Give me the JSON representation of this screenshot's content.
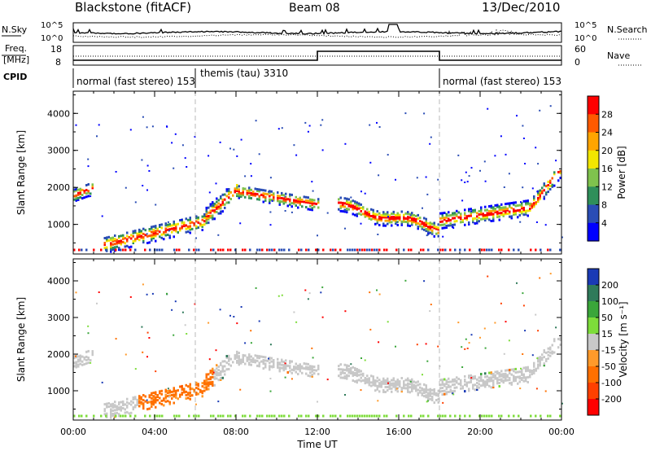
{
  "header": {
    "station": "Blackstone (fitACF)",
    "beam": "Beam 08",
    "date": "13/Dec/2010"
  },
  "panels": {
    "nsky": {
      "label": "N.Sky",
      "right_label": "N.Search",
      "left_ticks": [
        "10^5",
        "10^0"
      ],
      "right_ticks": [
        "10^5",
        "10^0"
      ]
    },
    "freq": {
      "label_top": "Freq.",
      "label_bottom": "[MHz]",
      "right_label": "Nave",
      "left_ticks": [
        "18",
        "8"
      ],
      "right_ticks": [
        "60",
        "0"
      ]
    },
    "cpid": {
      "label": "CPID",
      "segments": [
        {
          "text": "normal (fast stereo) 153",
          "start_h": 0,
          "end_h": 6
        },
        {
          "text": "themis (tau) 3310",
          "start_h": 6,
          "end_h": 18
        },
        {
          "text": "normal (fast stereo) 153",
          "start_h": 18,
          "end_h": 24
        }
      ]
    }
  },
  "colorbars": {
    "power": {
      "label": "Power [dB]",
      "ticks": [
        "28",
        "24",
        "20",
        "16",
        "12",
        "8",
        "4"
      ],
      "colors": [
        "#ff0000",
        "#ff5a00",
        "#ffa500",
        "#f2e600",
        "#7fc24d",
        "#2f8f5a",
        "#2a4db5",
        "#0000ff"
      ]
    },
    "velocity": {
      "label": "Velocity [m s⁻¹]",
      "ticks": [
        "200",
        "100",
        "50",
        "15",
        "-15",
        "-50",
        "-100",
        "-200"
      ],
      "colors": [
        "#1a3ab5",
        "#2f7a5a",
        "#3aa63a",
        "#7ddc3a",
        "#c8c8c8",
        "#ff9a2a",
        "#ff7000",
        "#ff4000",
        "#ff0000"
      ]
    }
  },
  "chart_data": [
    {
      "type": "heatmap",
      "name": "Power",
      "ylabel": "Slant Range [km]",
      "yticks": [
        "4000",
        "3000",
        "2000",
        "1000"
      ],
      "ylim": [
        200,
        4600
      ],
      "xlim": [
        0,
        24
      ],
      "xticks": [
        "00:00",
        "04:00",
        "08:00",
        "12:00",
        "16:00",
        "20:00",
        "00:00"
      ],
      "xlabel": "Time UT",
      "units": "dB"
    },
    {
      "type": "heatmap",
      "name": "Velocity",
      "ylabel": "Slant Range [km]",
      "yticks": [
        "4000",
        "3000",
        "2000",
        "1000"
      ],
      "ylim": [
        200,
        4600
      ],
      "xlim": [
        0,
        24
      ],
      "xticks": [
        "00:00",
        "04:00",
        "08:00",
        "12:00",
        "16:00",
        "20:00",
        "00:00"
      ],
      "xlabel": "Time UT",
      "units": "m s⁻¹"
    }
  ]
}
